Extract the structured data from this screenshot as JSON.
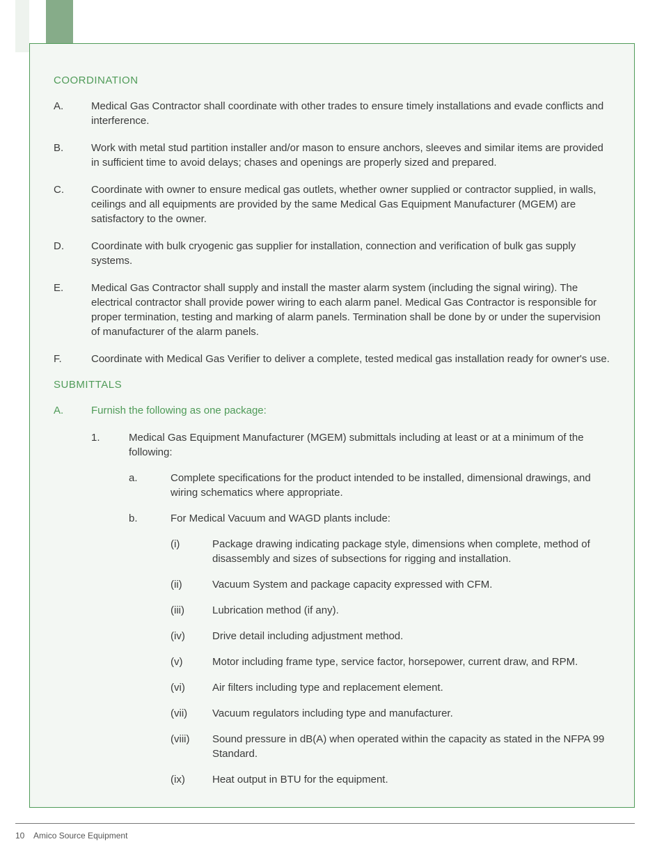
{
  "colors": {
    "accent_green": "#4f9b58",
    "tab_green": "#86ac89",
    "panel_bg": "#f3f7f3",
    "text": "#3b3b3b"
  },
  "sections": {
    "coordination": {
      "heading": "COORDINATION",
      "items": [
        {
          "marker": "A.",
          "text": "Medical Gas Contractor shall coordinate with other trades to ensure timely installations and evade conflicts and interference."
        },
        {
          "marker": "B.",
          "text": "Work with metal stud partition installer and/or mason to ensure anchors, sleeves and similar items are provided in sufficient time to avoid delays; chases and openings are properly sized and prepared."
        },
        {
          "marker": "C.",
          "text": "Coordinate with owner to ensure medical gas outlets, whether owner supplied or contractor supplied, in walls, ceilings and all equipments are provided by the same Medical Gas Equipment Manufacturer (MGEM) are satisfactory to the owner."
        },
        {
          "marker": "D.",
          "text": "Coordinate with bulk cryogenic gas supplier for installation, connection and verification of bulk gas supply systems."
        },
        {
          "marker": "E.",
          "text": "Medical Gas Contractor shall supply and install the master alarm system (including the signal wiring). The electrical contractor shall provide power wiring to each alarm panel. Medical Gas Contractor is responsible for proper termination, testing and marking of alarm panels. Termination shall be done by or under the supervision of manufacturer of the alarm panels."
        },
        {
          "marker": "F.",
          "text": "Coordinate with Medical Gas Verifier to deliver a complete, tested medical gas installation ready for owner's use."
        }
      ]
    },
    "submittals": {
      "heading": "SUBMITTALS",
      "a_marker": "A.",
      "a_text": "Furnish the following as one package:",
      "sub1_marker": "1.",
      "sub1_text": "Medical Gas Equipment Manufacturer (MGEM) submittals including at least or at a minimum of the following:",
      "sub_a_marker": "a.",
      "sub_a_text": "Complete specifications for the product intended to be installed, dimensional drawings, and wiring schematics where appropriate.",
      "sub_b_marker": "b.",
      "sub_b_text": "For Medical Vacuum and WAGD plants include:",
      "roman": [
        {
          "m": "(i)",
          "t": "Package drawing indicating package style, dimensions when complete, method of disassembly and sizes of subsections for rigging and installation."
        },
        {
          "m": "(ii)",
          "t": "Vacuum System and package capacity expressed with CFM."
        },
        {
          "m": "(iii)",
          "t": "Lubrication method (if any)."
        },
        {
          "m": "(iv)",
          "t": "Drive detail including adjustment method."
        },
        {
          "m": "(v)",
          "t": "Motor including frame type, service factor, horsepower, current draw, and RPM."
        },
        {
          "m": "(vi)",
          "t": "Air filters including type and replacement element."
        },
        {
          "m": "(vii)",
          "t": "Vacuum regulators including type and manufacturer."
        },
        {
          "m": "(viii)",
          "t": "Sound pressure in dB(A) when operated within the capacity as stated in the NFPA 99  Standard."
        },
        {
          "m": "(ix)",
          "t": "Heat output in BTU for the equipment."
        }
      ]
    }
  },
  "footer": {
    "page": "10",
    "title": "Amico Source Equipment"
  }
}
